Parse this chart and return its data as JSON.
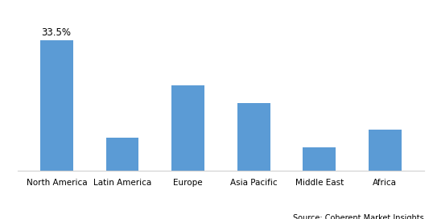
{
  "categories": [
    "North America",
    "Latin America",
    "Europe",
    "Asia Pacific",
    "Middle East",
    "Africa"
  ],
  "values": [
    33.5,
    8.5,
    22.0,
    17.5,
    6.0,
    10.5
  ],
  "bar_color": "#5b9bd5",
  "annotation_label": "33.5%",
  "annotation_bar_index": 0,
  "source_text": "Source: Coherent Market Insights",
  "background_color": "#ffffff",
  "grid_color": "#d0d0d0",
  "ylim": [
    0,
    40
  ],
  "bar_width": 0.5,
  "xlabel_fontsize": 7.5,
  "annotation_fontsize": 8.5,
  "source_fontsize": 7.0
}
